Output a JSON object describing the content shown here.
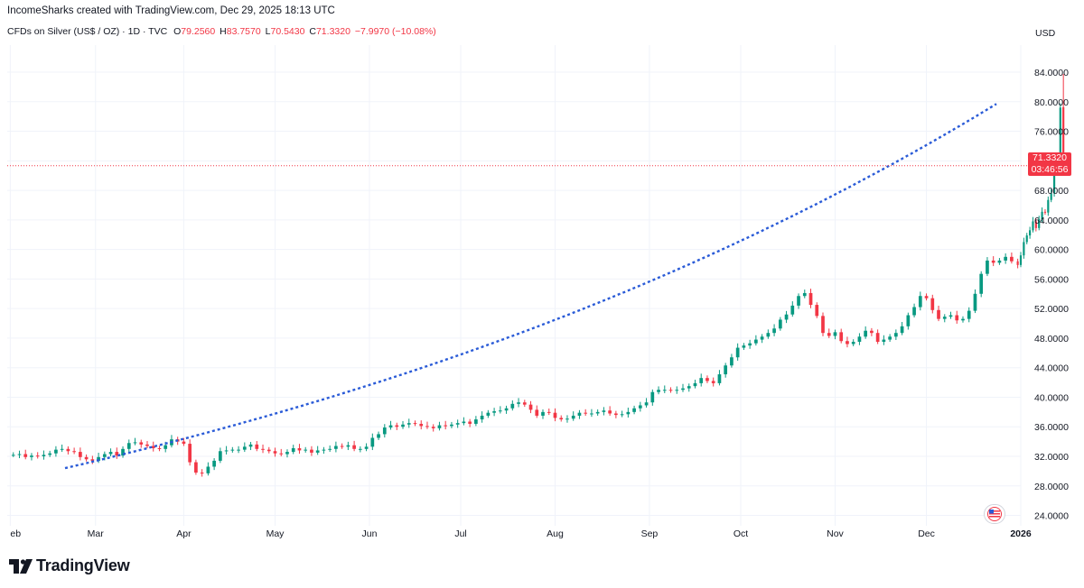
{
  "header": {
    "attribution": "IncomeSharks created with TradingView.com, Dec 29, 2025 18:13 UTC",
    "symbol_line": "CFDs on Silver (US$ / OZ) · 1D · TVC",
    "open_label": "O",
    "open_value": "79.2560",
    "high_label": "H",
    "high_value": "83.7570",
    "low_label": "L",
    "low_value": "70.5430",
    "close_label": "C",
    "close_value": "71.3320",
    "change": "−7.9970 (−10.08%)",
    "currency": "USD"
  },
  "price_badge": {
    "price": "71.3320",
    "countdown": "03:46:56"
  },
  "logo": {
    "text": "TradingView"
  },
  "colors": {
    "up": "#089981",
    "down": "#f23645",
    "trend": "#2a5bd7",
    "grid": "#f0f3fa",
    "axis_text": "#131722"
  },
  "chart_data": {
    "type": "candlestick",
    "title": "CFDs on Silver (US$ / OZ) · 1D · TVC",
    "ylabel": "USD",
    "ylim": [
      22.6,
      86.2
    ],
    "y_ticks": [
      "24.0000",
      "28.0000",
      "32.0000",
      "36.0000",
      "40.0000",
      "44.0000",
      "48.0000",
      "52.0000",
      "56.0000",
      "60.0000",
      "64.0000",
      "68.0000",
      "72.0000",
      "76.0000",
      "80.0000",
      "84.0000"
    ],
    "x_ticks": [
      "Feb",
      "Mar",
      "Apr",
      "May",
      "Jun",
      "Jul",
      "Aug",
      "Sep",
      "Oct",
      "Nov",
      "Dec",
      "2026"
    ],
    "x_tick_days": [
      -1,
      27,
      56,
      86,
      117,
      147,
      178,
      209,
      239,
      270,
      300,
      331
    ],
    "last_price": 71.332,
    "last_price_label": "71.3320",
    "trendline": {
      "style": "dotted",
      "from_day": 17,
      "to_day": 323,
      "start": 30.4,
      "end": 79.7,
      "shape": "exponential"
    },
    "day_range": [
      -2,
      331
    ],
    "closes": [
      [
        0,
        32.2
      ],
      [
        2,
        32.3
      ],
      [
        4,
        31.9
      ],
      [
        6,
        32.1
      ],
      [
        8,
        32.0
      ],
      [
        10,
        32.2
      ],
      [
        12,
        32.4
      ],
      [
        14,
        32.9
      ],
      [
        16,
        33.0
      ],
      [
        18,
        32.7
      ],
      [
        20,
        32.6
      ],
      [
        22,
        31.9
      ],
      [
        24,
        31.6
      ],
      [
        26,
        31.4
      ],
      [
        28,
        31.9
      ],
      [
        30,
        32.3
      ],
      [
        32,
        32.6
      ],
      [
        34,
        32.1
      ],
      [
        36,
        33.0
      ],
      [
        38,
        33.8
      ],
      [
        40,
        33.9
      ],
      [
        42,
        33.6
      ],
      [
        44,
        33.4
      ],
      [
        46,
        33.1
      ],
      [
        48,
        33.0
      ],
      [
        50,
        33.5
      ],
      [
        52,
        34.3
      ],
      [
        54,
        34.0
      ],
      [
        56,
        33.7
      ],
      [
        58,
        31.2
      ],
      [
        60,
        29.8
      ],
      [
        62,
        29.7
      ],
      [
        64,
        30.6
      ],
      [
        66,
        31.4
      ],
      [
        68,
        32.7
      ],
      [
        70,
        32.8
      ],
      [
        72,
        32.9
      ],
      [
        74,
        32.9
      ],
      [
        76,
        33.3
      ],
      [
        78,
        33.6
      ],
      [
        80,
        33.0
      ],
      [
        82,
        32.9
      ],
      [
        84,
        32.7
      ],
      [
        86,
        32.4
      ],
      [
        88,
        32.3
      ],
      [
        90,
        32.6
      ],
      [
        92,
        33.1
      ],
      [
        94,
        32.8
      ],
      [
        96,
        32.9
      ],
      [
        98,
        32.5
      ],
      [
        100,
        32.8
      ],
      [
        102,
        32.9
      ],
      [
        104,
        33.0
      ],
      [
        106,
        33.4
      ],
      [
        108,
        33.3
      ],
      [
        110,
        33.5
      ],
      [
        112,
        33.0
      ],
      [
        114,
        33.0
      ],
      [
        116,
        33.3
      ],
      [
        118,
        34.5
      ],
      [
        120,
        35.0
      ],
      [
        122,
        35.9
      ],
      [
        124,
        36.2
      ],
      [
        126,
        36.0
      ],
      [
        128,
        36.3
      ],
      [
        130,
        36.5
      ],
      [
        132,
        36.4
      ],
      [
        134,
        36.1
      ],
      [
        136,
        36.0
      ],
      [
        138,
        35.8
      ],
      [
        140,
        36.2
      ],
      [
        142,
        36.1
      ],
      [
        144,
        36.3
      ],
      [
        146,
        36.5
      ],
      [
        148,
        36.7
      ],
      [
        150,
        36.4
      ],
      [
        152,
        37.0
      ],
      [
        154,
        37.5
      ],
      [
        156,
        37.9
      ],
      [
        158,
        38.1
      ],
      [
        160,
        38.2
      ],
      [
        162,
        38.5
      ],
      [
        164,
        39.1
      ],
      [
        166,
        39.3
      ],
      [
        168,
        39.0
      ],
      [
        170,
        38.3
      ],
      [
        172,
        37.5
      ],
      [
        174,
        38.0
      ],
      [
        176,
        37.9
      ],
      [
        178,
        37.2
      ],
      [
        180,
        37.0
      ],
      [
        182,
        37.1
      ],
      [
        184,
        37.5
      ],
      [
        186,
        37.9
      ],
      [
        188,
        37.8
      ],
      [
        190,
        37.8
      ],
      [
        192,
        38.0
      ],
      [
        194,
        38.2
      ],
      [
        196,
        37.8
      ],
      [
        198,
        37.6
      ],
      [
        200,
        37.7
      ],
      [
        202,
        38.0
      ],
      [
        204,
        38.5
      ],
      [
        206,
        38.9
      ],
      [
        208,
        39.3
      ],
      [
        210,
        40.7
      ],
      [
        212,
        41.0
      ],
      [
        214,
        41.0
      ],
      [
        216,
        40.9
      ],
      [
        218,
        41.0
      ],
      [
        220,
        41.2
      ],
      [
        222,
        41.5
      ],
      [
        224,
        41.9
      ],
      [
        226,
        42.6
      ],
      [
        228,
        42.2
      ],
      [
        230,
        41.9
      ],
      [
        232,
        43.1
      ],
      [
        234,
        44.3
      ],
      [
        236,
        45.4
      ],
      [
        238,
        46.7
      ],
      [
        240,
        47.0
      ],
      [
        242,
        47.3
      ],
      [
        244,
        47.8
      ],
      [
        246,
        48.2
      ],
      [
        248,
        48.7
      ],
      [
        250,
        49.3
      ],
      [
        252,
        50.5
      ],
      [
        254,
        51.2
      ],
      [
        256,
        52.4
      ],
      [
        258,
        53.7
      ],
      [
        260,
        54.1
      ],
      [
        262,
        52.5
      ],
      [
        264,
        51.0
      ],
      [
        266,
        48.7
      ],
      [
        268,
        48.3
      ],
      [
        270,
        48.8
      ],
      [
        272,
        47.6
      ],
      [
        274,
        47.2
      ],
      [
        276,
        47.5
      ],
      [
        278,
        48.2
      ],
      [
        280,
        49.0
      ],
      [
        282,
        48.7
      ],
      [
        284,
        47.5
      ],
      [
        286,
        47.8
      ],
      [
        288,
        48.2
      ],
      [
        290,
        48.7
      ],
      [
        292,
        49.6
      ],
      [
        294,
        51.1
      ],
      [
        296,
        52.2
      ],
      [
        298,
        53.7
      ],
      [
        300,
        53.4
      ],
      [
        302,
        51.8
      ],
      [
        304,
        50.6
      ],
      [
        306,
        50.9
      ],
      [
        308,
        51.1
      ],
      [
        310,
        50.4
      ],
      [
        312,
        50.6
      ],
      [
        314,
        51.7
      ],
      [
        316,
        54.0
      ],
      [
        318,
        56.7
      ],
      [
        320,
        58.5
      ],
      [
        322,
        58.2
      ],
      [
        324,
        58.5
      ],
      [
        326,
        59.0
      ],
      [
        328,
        58.4
      ],
      [
        330,
        57.9
      ]
    ],
    "closes_tail": [
      [
        331,
        59.2
      ],
      [
        332,
        61.0
      ],
      [
        333,
        61.9
      ],
      [
        334,
        62.6
      ],
      [
        335,
        63.8
      ],
      [
        336,
        62.9
      ],
      [
        337,
        64.1
      ],
      [
        338,
        65.1
      ],
      [
        339,
        65.0
      ],
      [
        340,
        66.7
      ],
      [
        341,
        67.6
      ],
      [
        342,
        70.4
      ],
      [
        343,
        72.1
      ],
      [
        344,
        79.2
      ],
      [
        345,
        71.3
      ]
    ]
  }
}
